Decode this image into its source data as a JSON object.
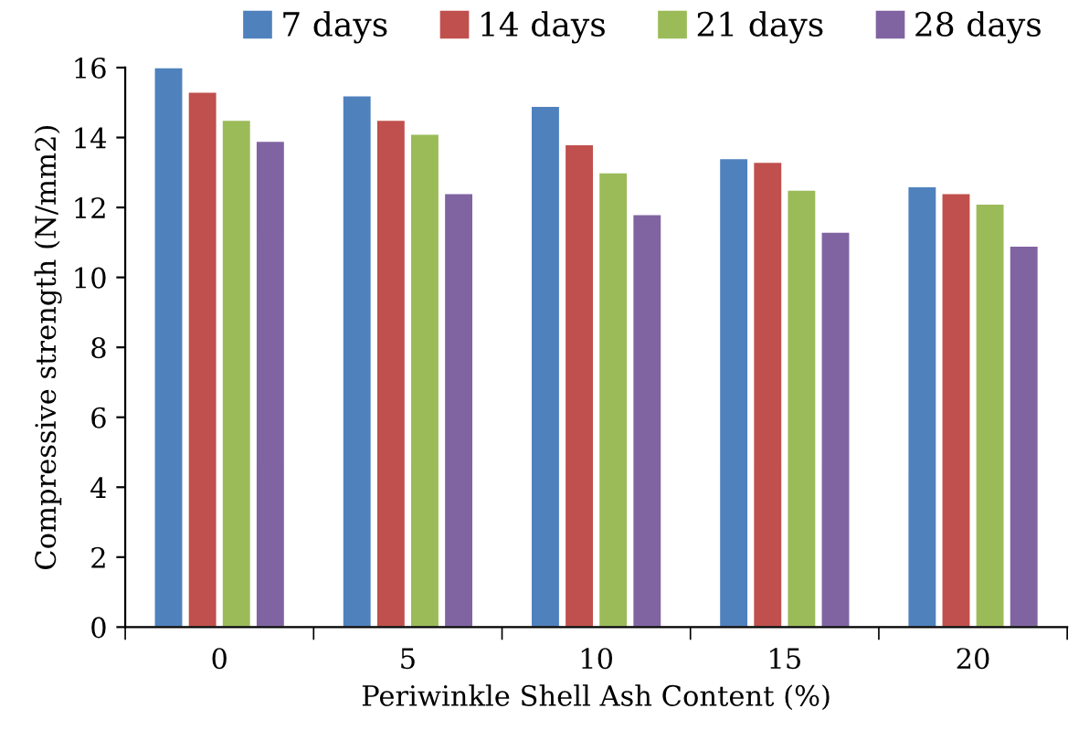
{
  "chart_data": {
    "type": "bar",
    "xlabel": "Periwinkle Shell Ash Content (%)",
    "ylabel": "Compressive strength (N/mm2)",
    "categories": [
      "0",
      "5",
      "10",
      "15",
      "20"
    ],
    "series": [
      {
        "name": "7 days",
        "color": "#4f81bd",
        "values": [
          16.0,
          15.2,
          14.9,
          13.4,
          12.6
        ]
      },
      {
        "name": "14 days",
        "color": "#c0504d",
        "values": [
          15.3,
          14.5,
          13.8,
          13.3,
          12.4
        ]
      },
      {
        "name": "21 days",
        "color": "#9bbb59",
        "values": [
          14.5,
          14.1,
          13.0,
          12.5,
          12.1
        ]
      },
      {
        "name": "28 days",
        "color": "#8064a2",
        "values": [
          13.9,
          12.4,
          11.8,
          11.3,
          10.9
        ]
      }
    ],
    "ylim": [
      0,
      16
    ],
    "yticks": [
      0,
      2,
      4,
      6,
      8,
      10,
      12,
      14,
      16
    ],
    "grid": false,
    "legend": "top"
  }
}
